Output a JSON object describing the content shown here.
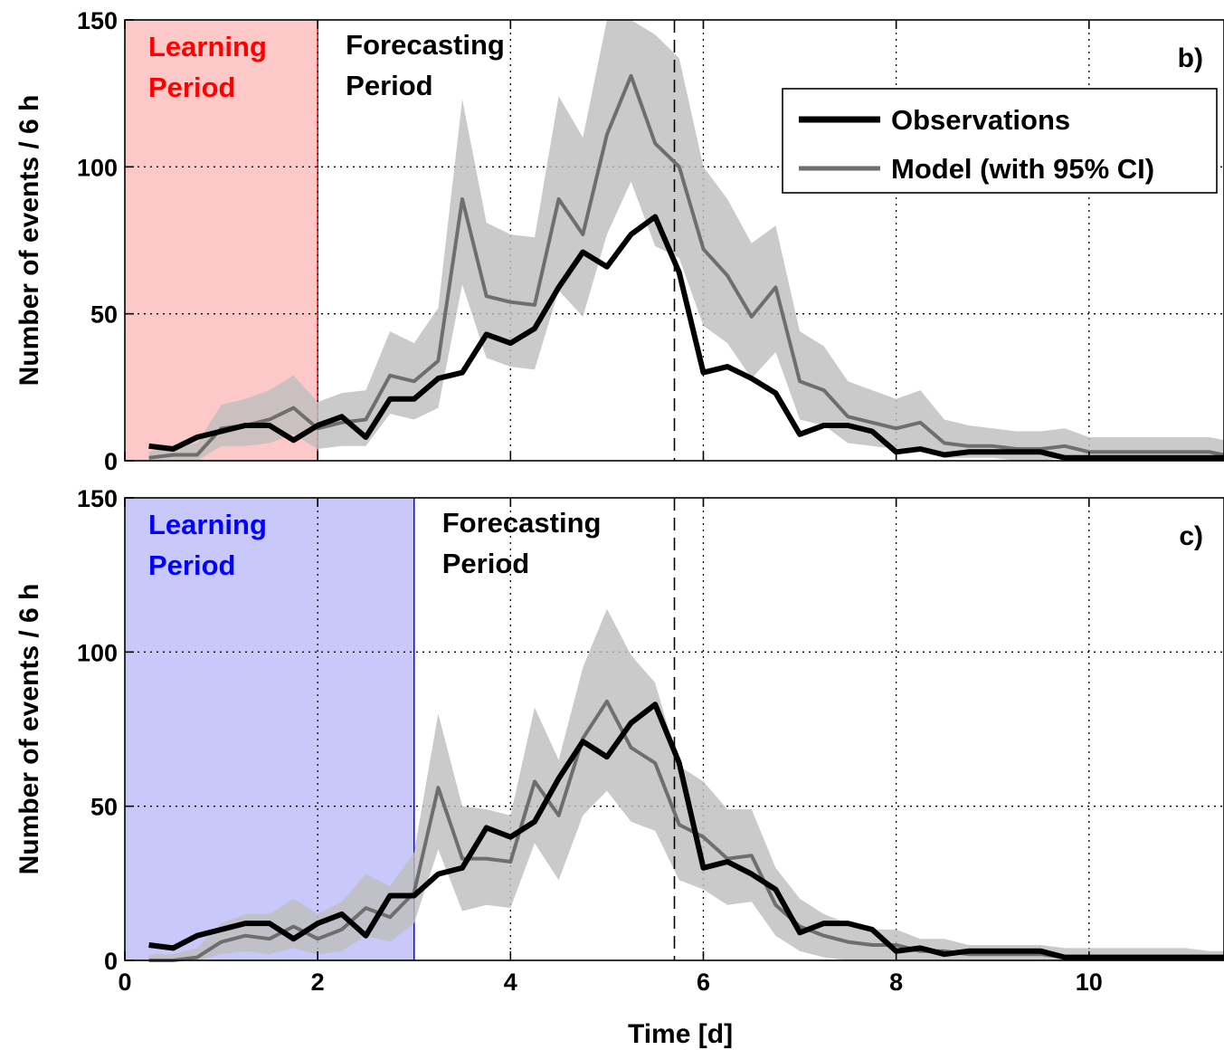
{
  "chart_data": [
    {
      "type": "line",
      "panel_label": "b)",
      "ylabel": "Number of events / 6 h",
      "xlabel": "",
      "xlim": [
        0,
        11.4
      ],
      "ylim": [
        0,
        150
      ],
      "xticks": [
        "0",
        "2",
        "4",
        "6",
        "8",
        "10"
      ],
      "yticks": [
        "0",
        "50",
        "100",
        "150"
      ],
      "grid": true,
      "learning_period": {
        "start": 0,
        "end": 2,
        "label_line1": "Learning",
        "label_line2": "Period",
        "color": "#ff0000",
        "fill": "#fdc8c8"
      },
      "forecasting_label": {
        "line1": "Forecasting",
        "line2": "Period"
      },
      "dashed_marker_x": 5.7,
      "legend": {
        "placement": "top-right",
        "entries": [
          {
            "label": "Observations",
            "color": "#000000"
          },
          {
            "label": "Model (with 95% CI)",
            "color": "#6e6e6e"
          }
        ]
      },
      "series": [
        {
          "name": "Observations",
          "x": [
            0.25,
            0.5,
            0.75,
            1,
            1.25,
            1.5,
            1.75,
            2,
            2.25,
            2.5,
            2.75,
            3,
            3.25,
            3.5,
            3.75,
            4,
            4.25,
            4.5,
            4.75,
            5,
            5.25,
            5.5,
            5.75,
            6,
            6.25,
            6.5,
            6.75,
            7,
            7.25,
            7.5,
            7.75,
            8,
            8.25,
            8.5,
            8.75,
            9,
            9.25,
            9.5,
            9.75,
            10,
            10.25,
            10.5,
            10.75,
            11,
            11.25,
            11.4
          ],
          "values": [
            5,
            4,
            8,
            10,
            12,
            12,
            7,
            12,
            15,
            8,
            21,
            21,
            28,
            30,
            43,
            40,
            45,
            59,
            71,
            66,
            77,
            83,
            64,
            30,
            32,
            28,
            23,
            9,
            12,
            12,
            10,
            3,
            4,
            2,
            3,
            3,
            3,
            3,
            1,
            1,
            1,
            1,
            1,
            1,
            1,
            1
          ]
        },
        {
          "name": "Model (with 95% CI)",
          "x": [
            0.25,
            0.5,
            0.75,
            1,
            1.25,
            1.5,
            1.75,
            2,
            2.25,
            2.5,
            2.75,
            3,
            3.25,
            3.5,
            3.75,
            4,
            4.25,
            4.5,
            4.75,
            5,
            5.25,
            5.5,
            5.75,
            6,
            6.25,
            6.5,
            6.75,
            7,
            7.25,
            7.5,
            7.75,
            8,
            8.25,
            8.5,
            8.75,
            9,
            9.25,
            9.5,
            9.75,
            10,
            10.25,
            10.5,
            10.75,
            11,
            11.25,
            11.4
          ],
          "values": [
            1,
            2,
            2,
            11,
            12,
            14,
            18,
            11,
            13,
            14,
            29,
            27,
            34,
            89,
            56,
            54,
            53,
            89,
            77,
            111,
            131,
            108,
            100,
            72,
            63,
            49,
            59,
            27,
            24,
            15,
            13,
            11,
            13,
            6,
            5,
            5,
            4,
            4,
            5,
            3,
            3,
            3,
            3,
            3,
            3,
            2
          ],
          "ci_upper": [
            3,
            5,
            6,
            19,
            21,
            24,
            29,
            20,
            23,
            24,
            44,
            40,
            52,
            123,
            81,
            77,
            76,
            124,
            110,
            150,
            165,
            145,
            137,
            100,
            89,
            74,
            80,
            44,
            39,
            27,
            24,
            21,
            24,
            14,
            12,
            11,
            10,
            10,
            11,
            8,
            8,
            8,
            8,
            8,
            8,
            7
          ],
          "ci_lower": [
            0,
            0,
            0,
            5,
            5,
            6,
            9,
            4,
            5,
            5,
            16,
            14,
            18,
            60,
            35,
            32,
            31,
            58,
            49,
            77,
            95,
            73,
            69,
            46,
            40,
            28,
            37,
            14,
            12,
            6,
            5,
            4,
            5,
            1,
            1,
            1,
            0,
            0,
            1,
            0,
            0,
            0,
            0,
            0,
            0,
            0
          ]
        }
      ]
    },
    {
      "type": "line",
      "panel_label": "c)",
      "ylabel": "Number of events / 6 h",
      "xlabel": "Time [d]",
      "xlim": [
        0,
        11.4
      ],
      "ylim": [
        0,
        150
      ],
      "xticks": [
        "0",
        "2",
        "4",
        "6",
        "8",
        "10"
      ],
      "yticks": [
        "0",
        "50",
        "100",
        "150"
      ],
      "grid": true,
      "learning_period": {
        "start": 0,
        "end": 3,
        "label_line1": "Learning",
        "label_line2": "Period",
        "color": "#0000ff",
        "fill": "#c8c8fa"
      },
      "forecasting_label": {
        "line1": "Forecasting",
        "line2": "Period"
      },
      "dashed_marker_x": 5.7,
      "series": [
        {
          "name": "Observations",
          "x": [
            0.25,
            0.5,
            0.75,
            1,
            1.25,
            1.5,
            1.75,
            2,
            2.25,
            2.5,
            2.75,
            3,
            3.25,
            3.5,
            3.75,
            4,
            4.25,
            4.5,
            4.75,
            5,
            5.25,
            5.5,
            5.75,
            6,
            6.25,
            6.5,
            6.75,
            7,
            7.25,
            7.5,
            7.75,
            8,
            8.25,
            8.5,
            8.75,
            9,
            9.25,
            9.5,
            9.75,
            10,
            10.25,
            10.5,
            10.75,
            11,
            11.25,
            11.4
          ],
          "values": [
            5,
            4,
            8,
            10,
            12,
            12,
            7,
            12,
            15,
            8,
            21,
            21,
            28,
            30,
            43,
            40,
            45,
            59,
            71,
            66,
            77,
            83,
            64,
            30,
            32,
            28,
            23,
            9,
            12,
            12,
            10,
            3,
            4,
            2,
            3,
            3,
            3,
            3,
            1,
            1,
            1,
            1,
            1,
            1,
            1,
            1
          ]
        },
        {
          "name": "Model (with 95% CI)",
          "x": [
            0.25,
            0.5,
            0.75,
            1,
            1.25,
            1.5,
            1.75,
            2,
            2.25,
            2.5,
            2.75,
            3,
            3.25,
            3.5,
            3.75,
            4,
            4.25,
            4.5,
            4.75,
            5,
            5.25,
            5.5,
            5.75,
            6,
            6.25,
            6.5,
            6.75,
            7,
            7.25,
            7.5,
            7.75,
            8,
            8.25,
            8.5,
            8.75,
            9,
            9.25,
            9.5,
            9.75,
            10,
            10.25,
            10.5,
            10.75,
            11,
            11.25,
            11.4
          ],
          "values": [
            0,
            0,
            1,
            6,
            8,
            7,
            11,
            7,
            10,
            17,
            14,
            22,
            56,
            33,
            33,
            32,
            58,
            47,
            72,
            84,
            69,
            64,
            44,
            40,
            33,
            34,
            18,
            11,
            8,
            6,
            5,
            5,
            3,
            3,
            2,
            2,
            2,
            2,
            1,
            1,
            1,
            1,
            1,
            1,
            1,
            1
          ],
          "ci_upper": [
            2,
            2,
            4,
            12,
            15,
            15,
            20,
            15,
            19,
            28,
            24,
            35,
            80,
            50,
            49,
            47,
            82,
            65,
            95,
            114,
            99,
            90,
            63,
            58,
            49,
            49,
            30,
            20,
            15,
            12,
            10,
            10,
            7,
            7,
            5,
            5,
            5,
            5,
            4,
            4,
            4,
            4,
            4,
            4,
            3,
            3
          ],
          "ci_lower": [
            0,
            0,
            0,
            2,
            3,
            2,
            4,
            2,
            3,
            8,
            6,
            12,
            36,
            16,
            18,
            17,
            38,
            26,
            47,
            55,
            45,
            42,
            26,
            23,
            18,
            19,
            8,
            3,
            1,
            0,
            0,
            0,
            0,
            0,
            0,
            0,
            0,
            0,
            0,
            0,
            0,
            0,
            0,
            0,
            0,
            0
          ]
        }
      ]
    }
  ]
}
